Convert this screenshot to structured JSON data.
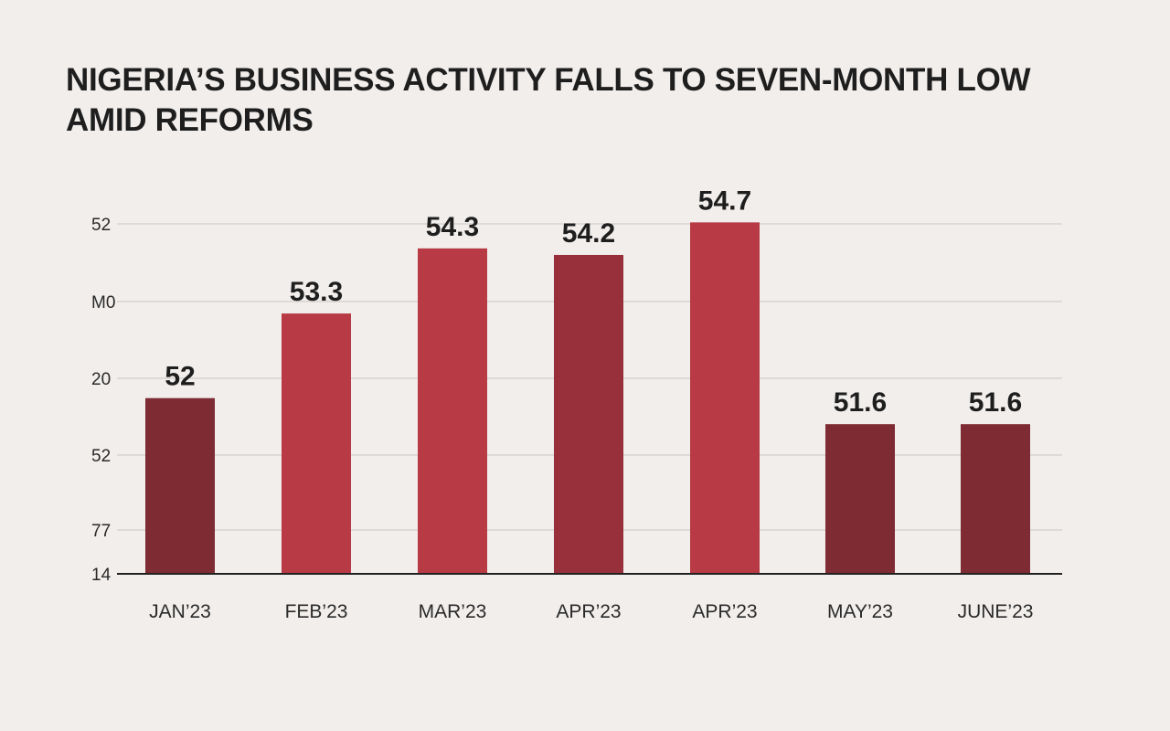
{
  "chart_data": {
    "type": "bar",
    "title": "NIGERIA’S BUSINESS ACTIVITY FALLS TO SEVEN-MONTH LOW AMID REFORMS",
    "xlabel": "",
    "ylabel": "",
    "categories": [
      "JAN’23",
      "FEB’23",
      "MAR’23",
      "APR’23",
      "APR’23",
      "MAY’23",
      "JUNE’23"
    ],
    "values": [
      52,
      53.3,
      54.3,
      54.2,
      54.7,
      51.6,
      51.6
    ],
    "data_labels": [
      "52",
      "53.3",
      "54.3",
      "54.2",
      "54.7",
      "51.6",
      "51.6"
    ],
    "y_tick_labels": [
      "14",
      "77",
      "52",
      "20",
      "M0",
      "52"
    ],
    "ylim": [
      49.3,
      55.0
    ],
    "grid": true,
    "legend": "none",
    "bar_colors": [
      "#7e2b33",
      "#b83a44",
      "#b83a44",
      "#98303b",
      "#b83a44",
      "#7e2b33",
      "#7e2b33"
    ],
    "colors": {
      "background": "#f1eeec",
      "gridline": "#d2cfcc",
      "axis": "#222222",
      "text": "#1e1e1e"
    }
  }
}
